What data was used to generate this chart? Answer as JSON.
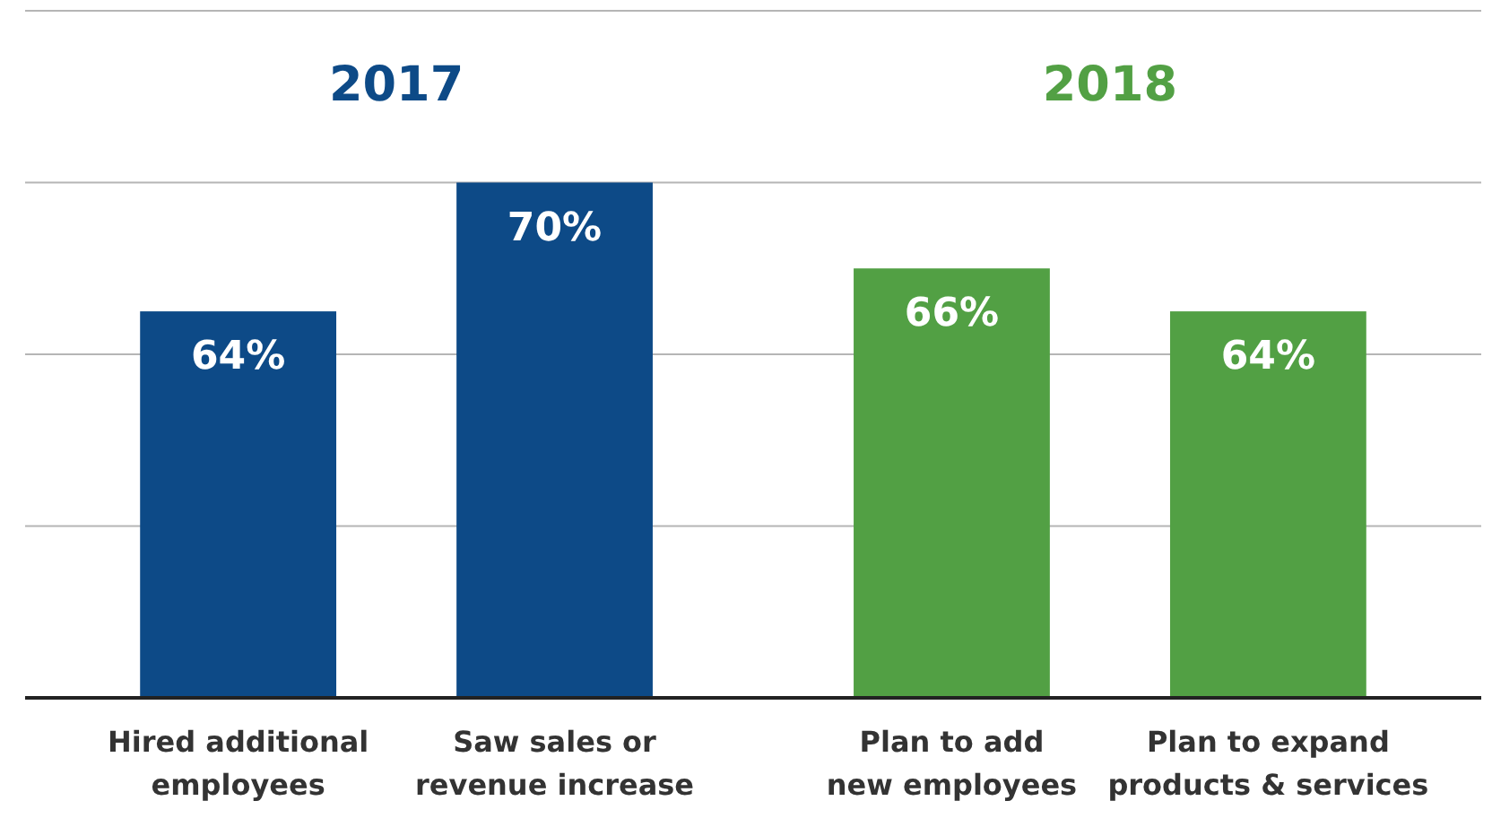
{
  "chart_data": {
    "type": "bar",
    "categories": [
      "Hired additional employees",
      "Saw sales or revenue increase",
      "Plan to add new employees",
      "Plan to expand products & services"
    ],
    "series": [
      {
        "name": "2017",
        "color": "#0d4a87",
        "values": [
          64,
          70,
          null,
          null
        ],
        "value_labels": [
          "64%",
          "70%",
          null,
          null
        ]
      },
      {
        "name": "2018",
        "color": "#52a044",
        "values": [
          null,
          null,
          66,
          64
        ],
        "value_labels": [
          null,
          null,
          "66%",
          "64%"
        ]
      }
    ],
    "ylim": [
      46,
      78
    ],
    "yticks": [
      {
        "value": 46,
        "label": null
      },
      {
        "value": 54,
        "label": null
      },
      {
        "value": 62,
        "label": null
      },
      {
        "value": 70,
        "label": null
      },
      {
        "value": 78,
        "label": null
      }
    ],
    "grid": "y",
    "tick_labels": "x"
  }
}
